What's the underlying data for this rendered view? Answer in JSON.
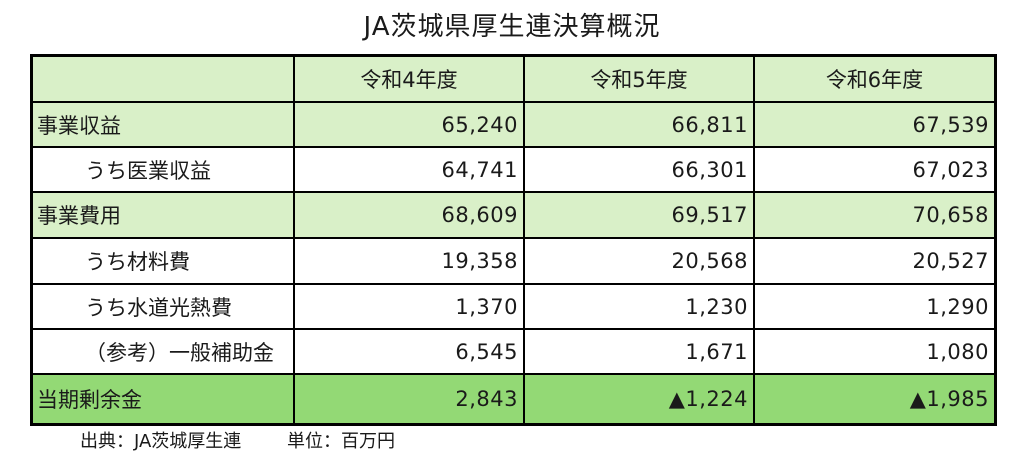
{
  "title": "JA茨城県厚生連決算概況",
  "table": {
    "columns": [
      "",
      "令和4年度",
      "令和5年度",
      "令和6年度"
    ],
    "rows": [
      {
        "label": "事業収益",
        "values": [
          "65,240",
          "66,811",
          "67,539"
        ]
      },
      {
        "label": "うち医業収益",
        "values": [
          "64,741",
          "66,301",
          "67,023"
        ]
      },
      {
        "label": "事業費用",
        "values": [
          "68,609",
          "69,517",
          "70,658"
        ]
      },
      {
        "label": "うち材料費",
        "values": [
          "19,358",
          "20,568",
          "20,527"
        ]
      },
      {
        "label": "うち水道光熱費",
        "values": [
          "1,370",
          "1,230",
          "1,290"
        ]
      },
      {
        "label": "（参考）一般補助金",
        "values": [
          "6,545",
          "1,671",
          "1,080"
        ]
      },
      {
        "label": "当期剰余金",
        "values": [
          "2,843",
          "▲1,224",
          "▲1,985"
        ]
      }
    ]
  },
  "footer": {
    "source": "出典：JA茨城厚生連",
    "unit": "単位：百万円"
  },
  "colors": {
    "header_bg": "#d9f0c8",
    "main_row_bg": "#d9f0c8",
    "sub_row_bg": "#ffffff",
    "total_row_bg": "#93d975",
    "border": "#000000"
  }
}
